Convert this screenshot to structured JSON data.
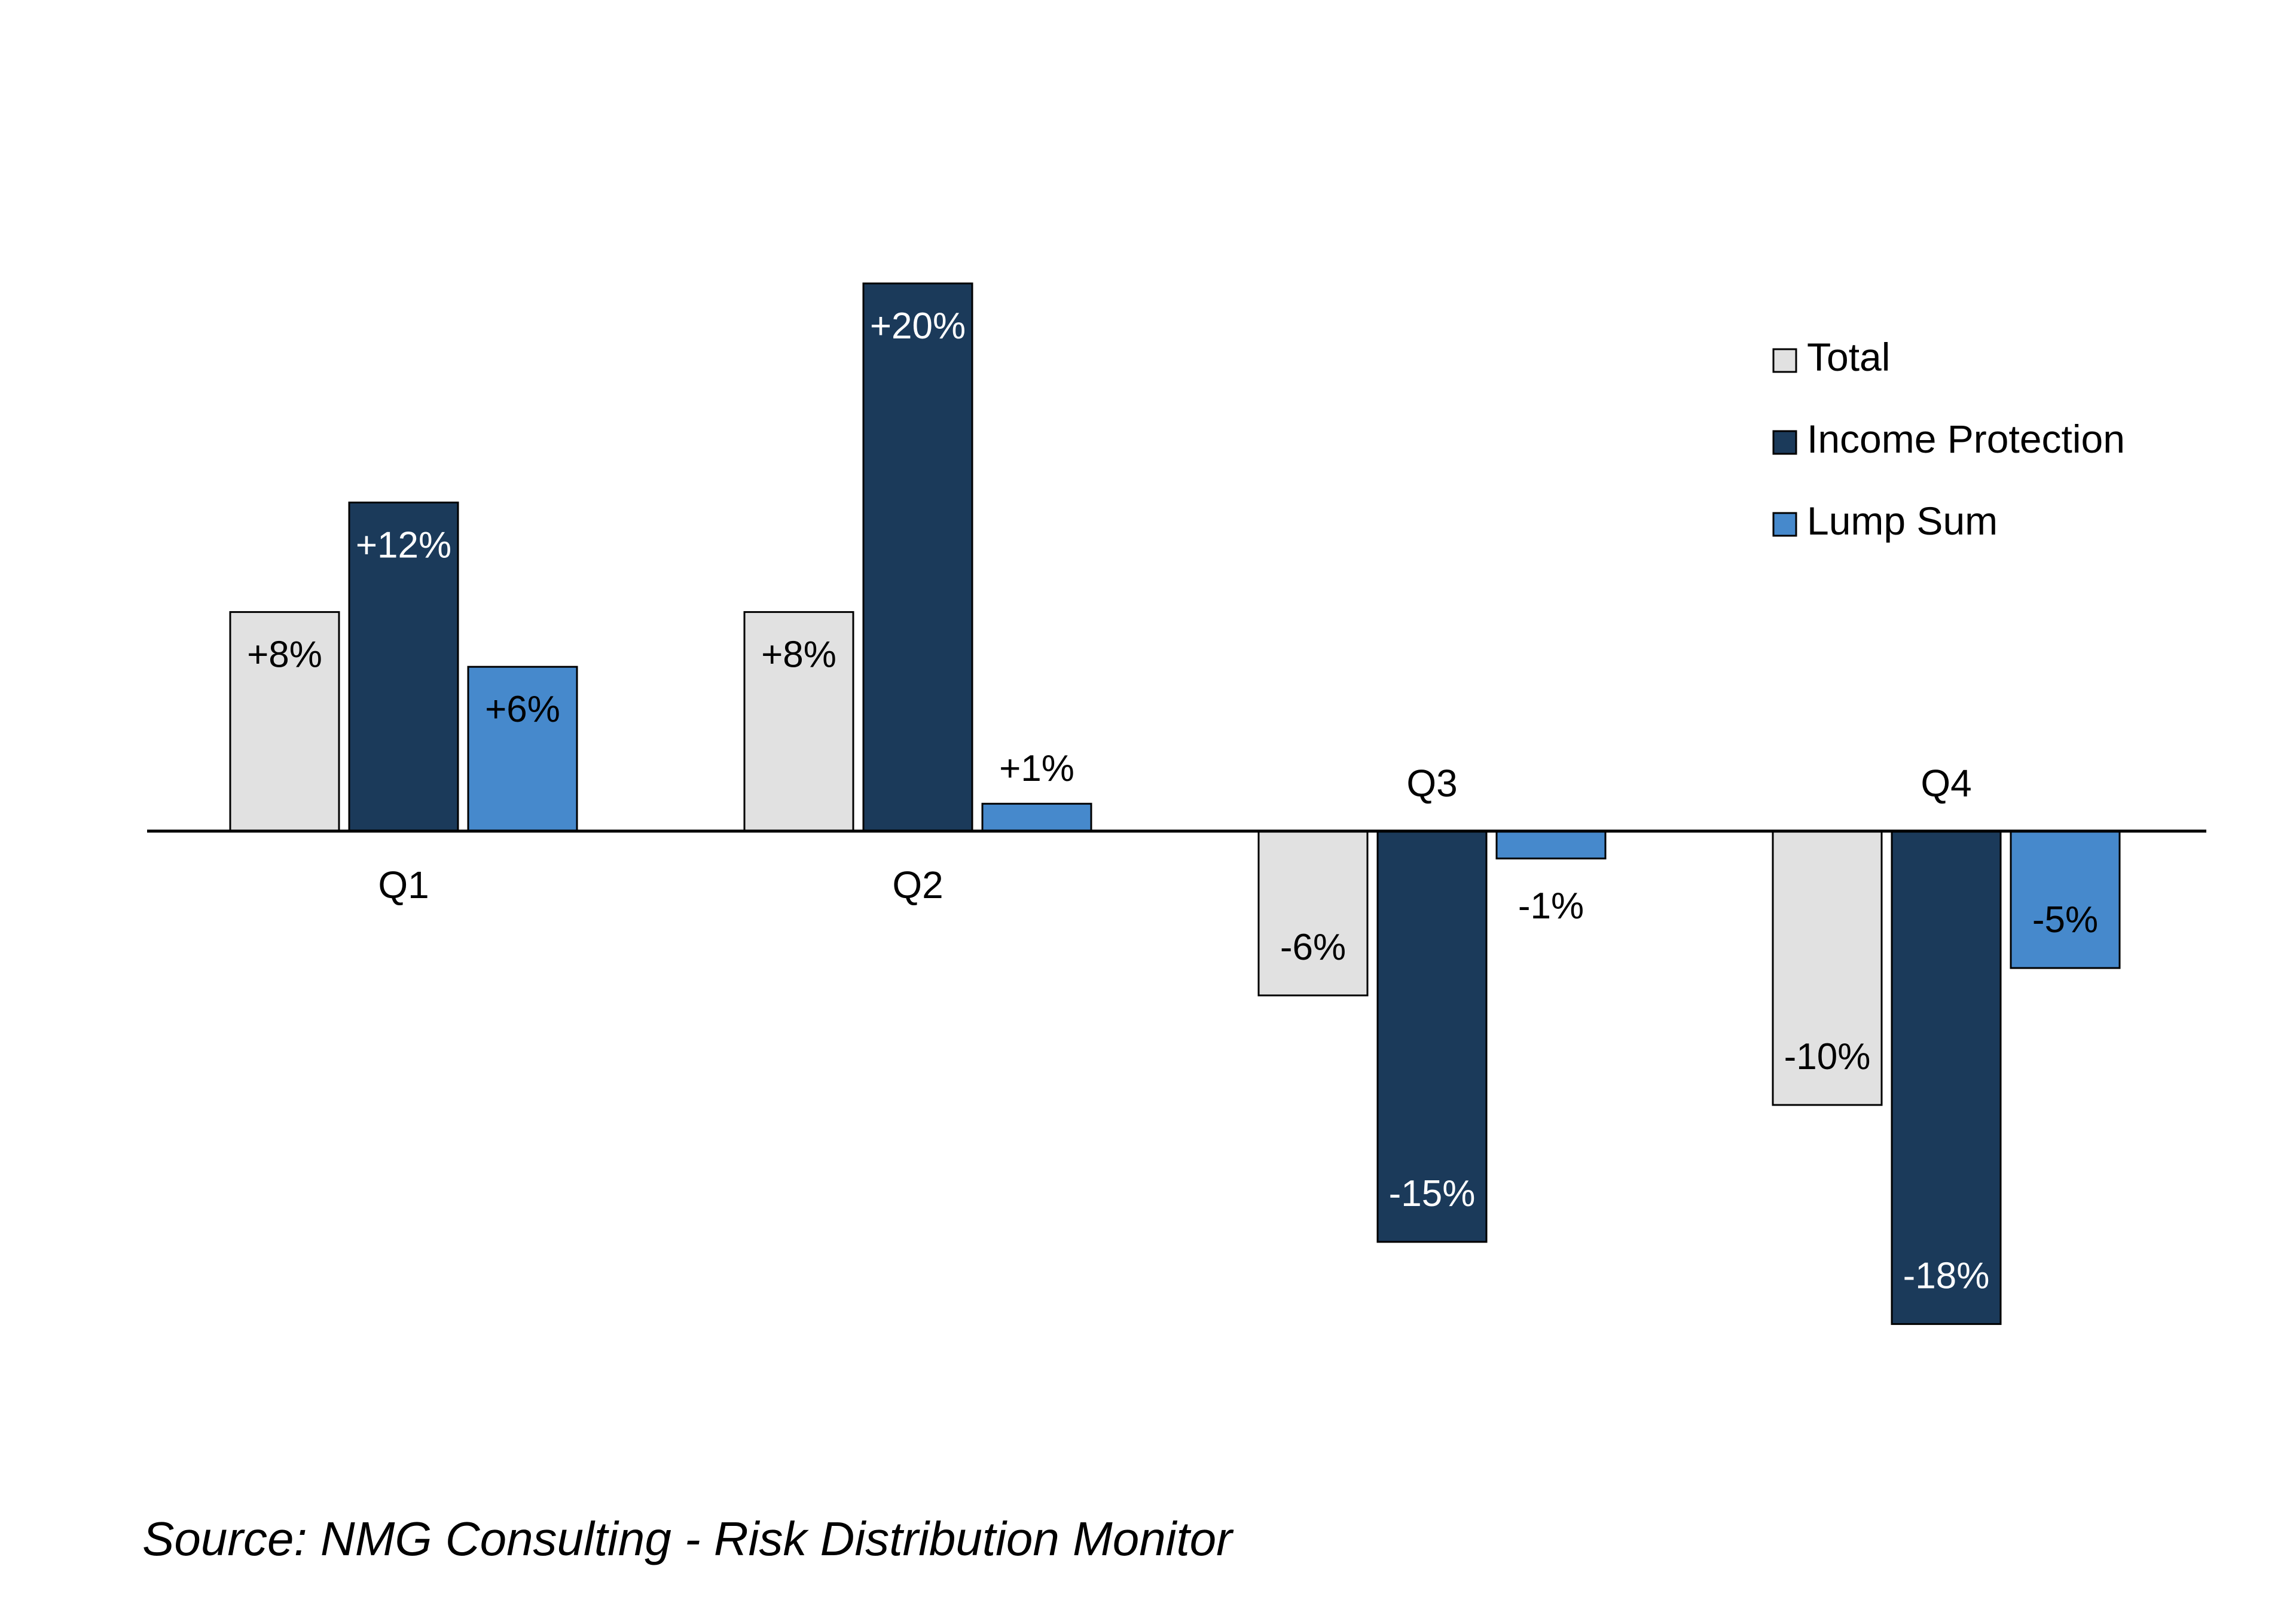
{
  "chart_data": {
    "type": "bar",
    "title": "",
    "xlabel": "",
    "ylabel": "",
    "categories": [
      "Q1",
      "Q2",
      "Q3",
      "Q4"
    ],
    "ylim": [
      -25,
      25
    ],
    "grid": false,
    "legend_position": "top-right",
    "series": [
      {
        "name": "Total",
        "values": [
          8,
          8,
          -6,
          -10
        ],
        "labels": [
          "+8%",
          "+8%",
          "-6%",
          "-10%"
        ],
        "color": "#e1e1e1",
        "label_color": "#000000"
      },
      {
        "name": "Income Protection",
        "values": [
          12,
          20,
          -15,
          -18
        ],
        "labels": [
          "+12%",
          "+20%",
          "-15%",
          "-18%"
        ],
        "color": "#1b3a5a",
        "label_color": "#ffffff"
      },
      {
        "name": "Lump Sum",
        "values": [
          6,
          1,
          -1,
          -5
        ],
        "labels": [
          "+6%",
          "+1%",
          "-1%",
          "-5%"
        ],
        "color": "#4689cc",
        "label_color": "#000000"
      }
    ]
  },
  "source": "Source: NMG Consulting - Risk Distribution Monitor"
}
